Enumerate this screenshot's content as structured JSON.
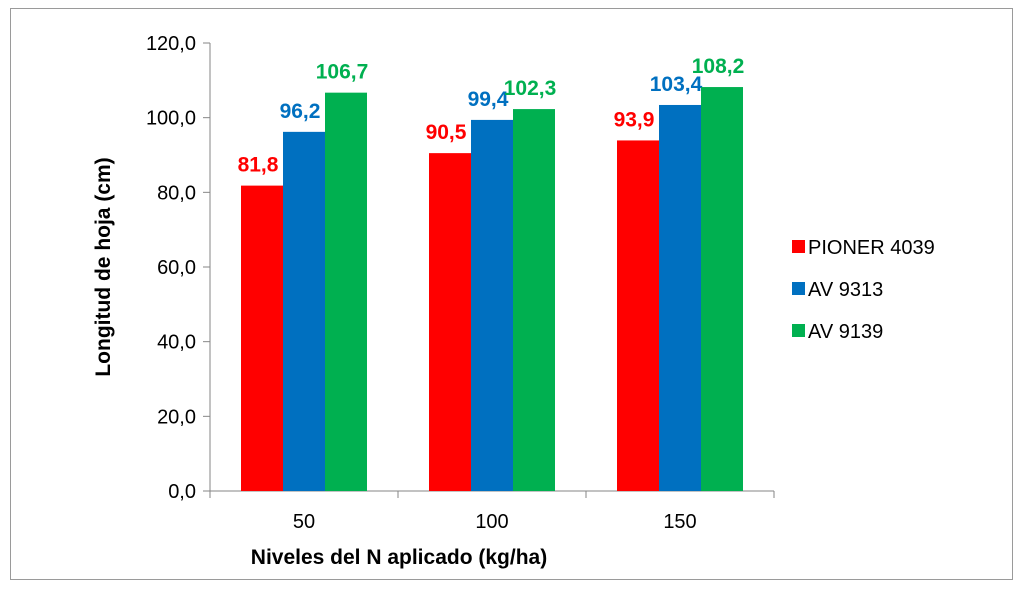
{
  "chart_data": {
    "type": "bar",
    "xlabel": "Niveles del N aplicado (kg/ha)",
    "ylabel": "Longitud de hoja (cm)",
    "categories": [
      "50",
      "100",
      "150"
    ],
    "ylim": [
      0,
      120
    ],
    "yticks": [
      "0,0",
      "20,0",
      "40,0",
      "60,0",
      "80,0",
      "100,0",
      "120,0"
    ],
    "grid": false,
    "legend_position": "right",
    "series": [
      {
        "name": "PIONER 4039",
        "color": "#ff0000",
        "values": [
          81.8,
          90.5,
          93.9
        ],
        "labels": [
          "81,8",
          "90,5",
          "93,9"
        ]
      },
      {
        "name": "AV 9313",
        "color": "#0070c0",
        "values": [
          96.2,
          99.4,
          103.4
        ],
        "labels": [
          "96,2",
          "99,4",
          "103,4"
        ]
      },
      {
        "name": "AV 9139",
        "color": "#00b050",
        "values": [
          106.7,
          102.3,
          108.2
        ],
        "labels": [
          "106,7",
          "102,3",
          "108,2"
        ]
      }
    ]
  }
}
